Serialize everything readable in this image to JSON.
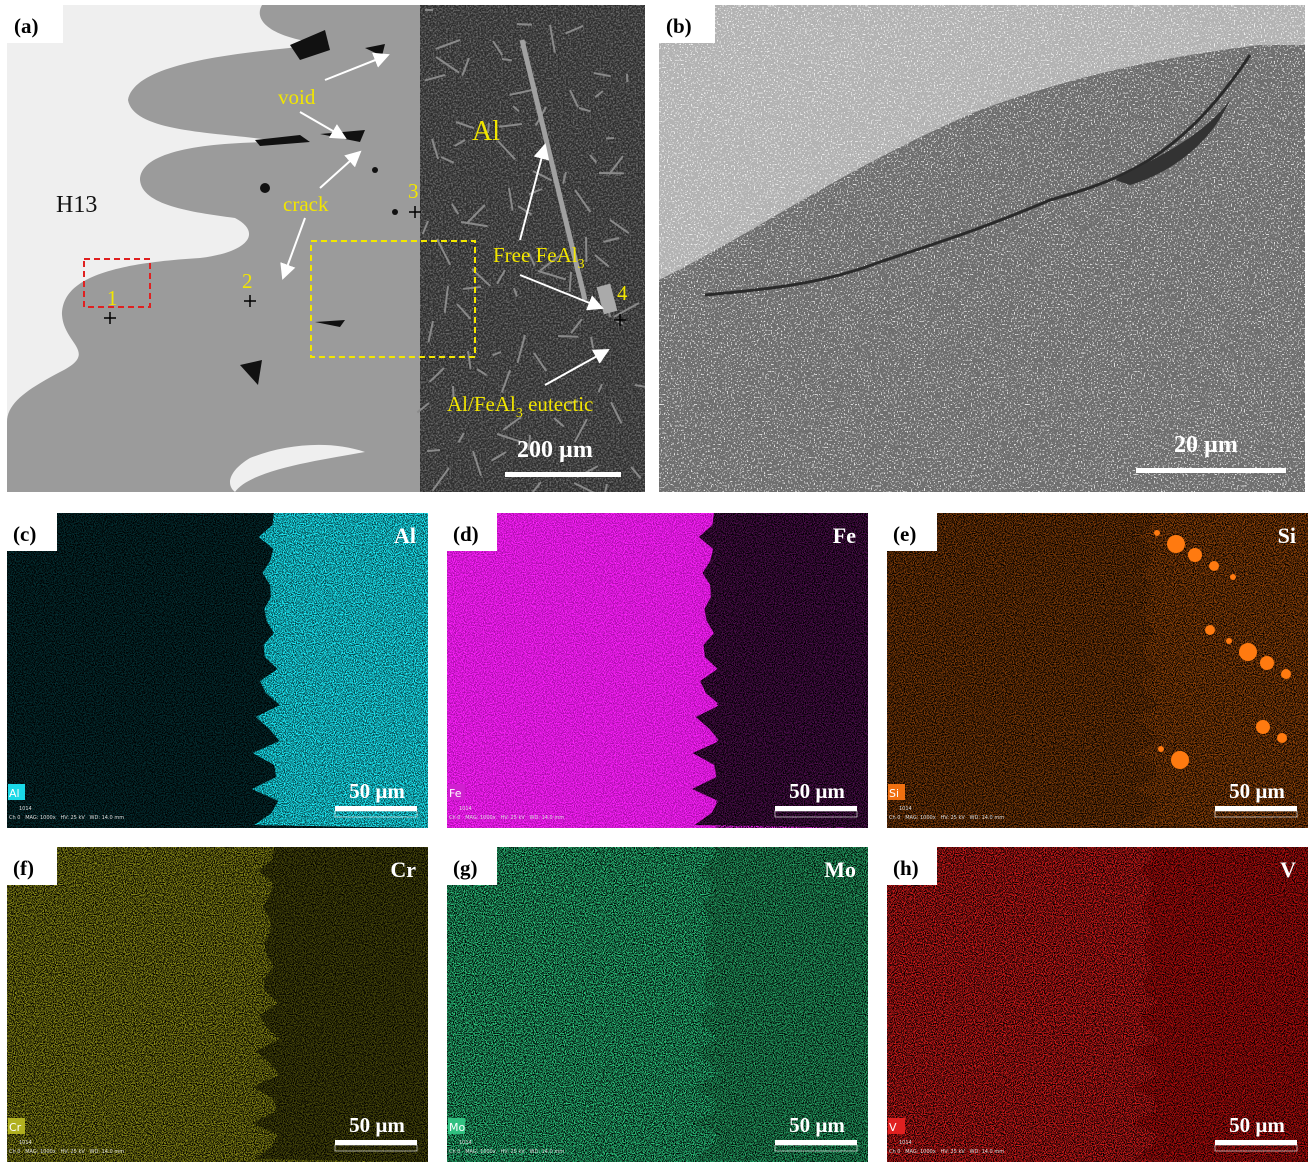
{
  "panels": [
    {
      "label": "(a)",
      "labels": {
        "h13": "H13",
        "al": "Al",
        "void": "void",
        "crack": "crack",
        "free": [
          "Free FeAl",
          "3"
        ],
        "eutectic": [
          "Al/FeAl",
          "3",
          " eutectic"
        ],
        "points": [
          "1",
          "2",
          "3",
          "4"
        ]
      },
      "scale_bar": "200 µm"
    },
    {
      "label": "(b)",
      "scale_bar": "20 µm"
    },
    {
      "label": "(c)",
      "element": "Al",
      "channel": "Al",
      "scale_bar": "50 µm",
      "info": [
        "1014",
        "Ch 0   MAG: 1000x   HV: 25 kV   WD: 14.0 mm"
      ]
    },
    {
      "label": "(d)",
      "element": "Fe",
      "channel": "Fe",
      "scale_bar": "50 µm",
      "info": [
        "1014",
        "Ch 0   MAG: 1000x   HV: 25 kV   WD: 14.0 mm"
      ]
    },
    {
      "label": "(e)",
      "element": "Si",
      "channel": "Si",
      "scale_bar": "50 µm",
      "info": [
        "1014",
        "Ch 0   MAG: 1000x   HV: 25 kV   WD: 14.0 mm"
      ]
    },
    {
      "label": "(f)",
      "element": "Cr",
      "channel": "Cr",
      "scale_bar": "50 µm",
      "info": [
        "1014",
        "Ch 0   MAG: 1000x   HV: 25 kV   WD: 14.0 mm"
      ]
    },
    {
      "label": "(g)",
      "element": "Mo",
      "channel": "Mo",
      "scale_bar": "50 µm",
      "info": [
        "1014",
        "Ch 0   MAG: 1000x   HV: 25 kV   WD: 14.0 mm"
      ]
    },
    {
      "label": "(h)",
      "element": "V",
      "channel": "V",
      "scale_bar": "50 µm",
      "info": [
        "1014",
        "Ch 0   MAG: 1000x   HV: 25 kV   WD: 14.0 mm"
      ]
    }
  ]
}
